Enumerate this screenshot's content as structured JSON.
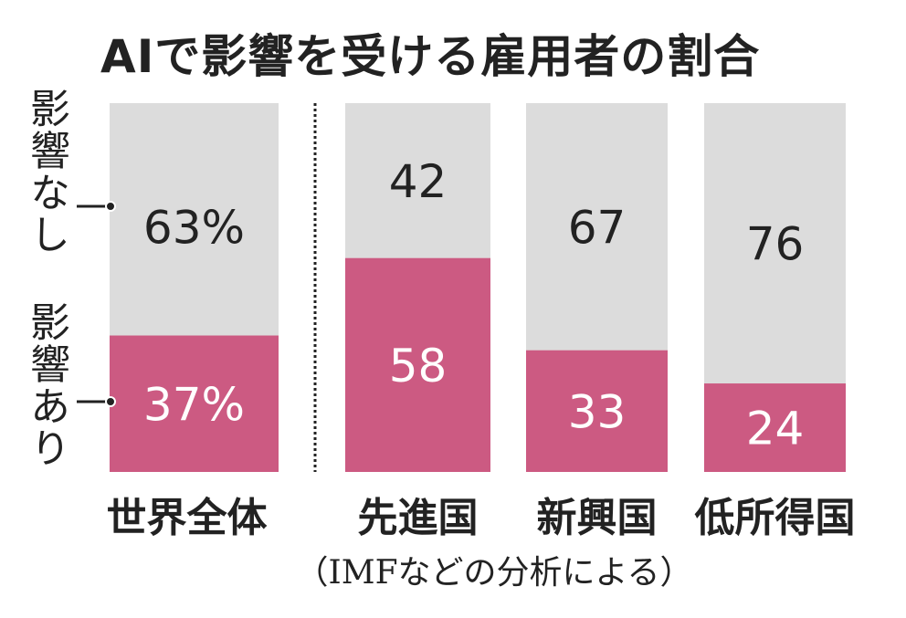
{
  "chart_data": {
    "type": "bar",
    "stacked": true,
    "title": "AIで影響を受ける雇用者の割合",
    "categories": [
      "世界全体",
      "先進国",
      "新興国",
      "低所得国"
    ],
    "series": [
      {
        "name": "影響あり",
        "values": [
          37,
          58,
          33,
          24
        ],
        "labels": [
          "37%",
          "58",
          "33",
          "24"
        ],
        "color": "#cc5a82"
      },
      {
        "name": "影響なし",
        "values": [
          63,
          42,
          67,
          76
        ],
        "labels": [
          "63%",
          "42",
          "67",
          "76"
        ],
        "color": "#dcdcdc"
      }
    ],
    "ylim": [
      0,
      100
    ],
    "grid": false,
    "legend": "left",
    "source": "（IMFなどの分析による）"
  }
}
